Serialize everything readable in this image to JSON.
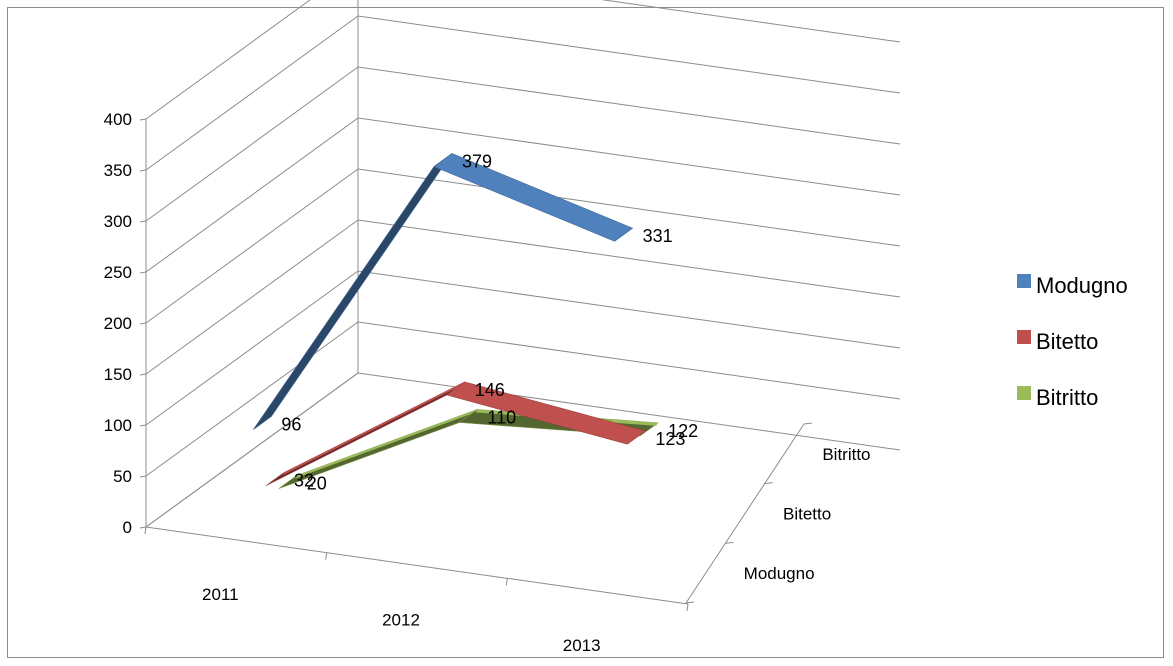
{
  "chart_data": {
    "type": "line",
    "style": "3d-ribbon",
    "categories": [
      "2011",
      "2012",
      "2013"
    ],
    "depth_categories": [
      "Modugno",
      "Bitetto",
      "Bitritto"
    ],
    "series": [
      {
        "name": "Modugno",
        "values": [
          96,
          379,
          331
        ],
        "color": "#4F81BD"
      },
      {
        "name": "Bitetto",
        "values": [
          32,
          146,
          123
        ],
        "color": "#C0504D"
      },
      {
        "name": "Bitritto",
        "values": [
          20,
          110,
          122
        ],
        "color": "#9BBB59"
      }
    ],
    "ylim": [
      0,
      400
    ],
    "yticks": [
      "0",
      "50",
      "100",
      "150",
      "200",
      "250",
      "300",
      "350",
      "400"
    ],
    "grid": true,
    "legend": "right"
  }
}
